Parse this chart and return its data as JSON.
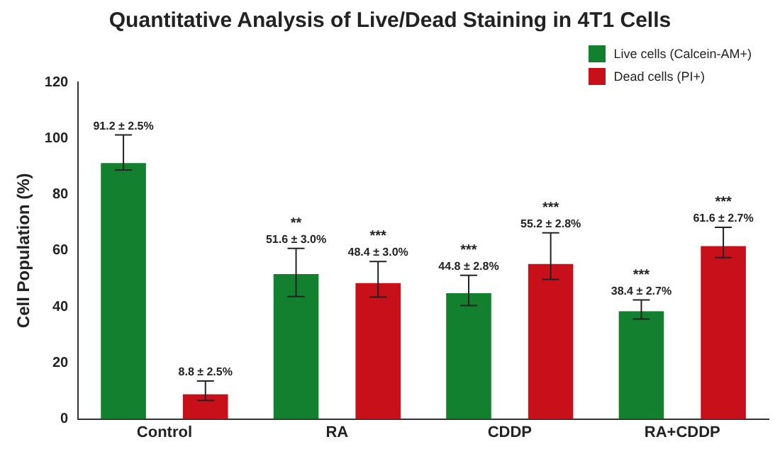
{
  "chart_data": {
    "type": "bar",
    "title": "Quantitative Analysis of Live/Dead Staining in 4T1 Cells",
    "ylabel": "Cell Population (%)",
    "categories": [
      "Control",
      "RA",
      "CDDP",
      "RA+CDDP"
    ],
    "series": [
      {
        "name": "Live cells (Calcein-AM+)",
        "color": "#12802f",
        "values": [
          91.2,
          51.6,
          44.8,
          38.4
        ],
        "value_labels": [
          "91.2 ± 2.5%",
          "51.6 ± 3.0%",
          "44.8 ± 2.8%",
          "38.4 ± 2.7%"
        ],
        "errors": [
          [
            88.7,
            101.2
          ],
          [
            43.6,
            60.8
          ],
          [
            40.4,
            51.2
          ],
          [
            35.6,
            42.4
          ]
        ]
      },
      {
        "name": "Dead cells (PI+)",
        "color": "#c8101a",
        "values": [
          8.8,
          48.4,
          55.2,
          61.6
        ],
        "value_labels": [
          "8.8 ± 2.5%",
          "48.4 ± 3.0%",
          "55.2 ± 2.8%",
          "61.6 ± 2.7%"
        ],
        "errors": [
          [
            6.6,
            13.5
          ],
          [
            43.4,
            56.1
          ],
          [
            49.7,
            66.3
          ],
          [
            57.5,
            68.3
          ]
        ]
      }
    ],
    "annotations": [
      "**",
      "***",
      "***",
      "***",
      "***",
      "***"
    ],
    "ylim": [
      0,
      120
    ],
    "yticks": [
      0,
      20,
      40,
      60,
      80,
      100,
      120
    ],
    "grid": false,
    "legend": "top right"
  }
}
